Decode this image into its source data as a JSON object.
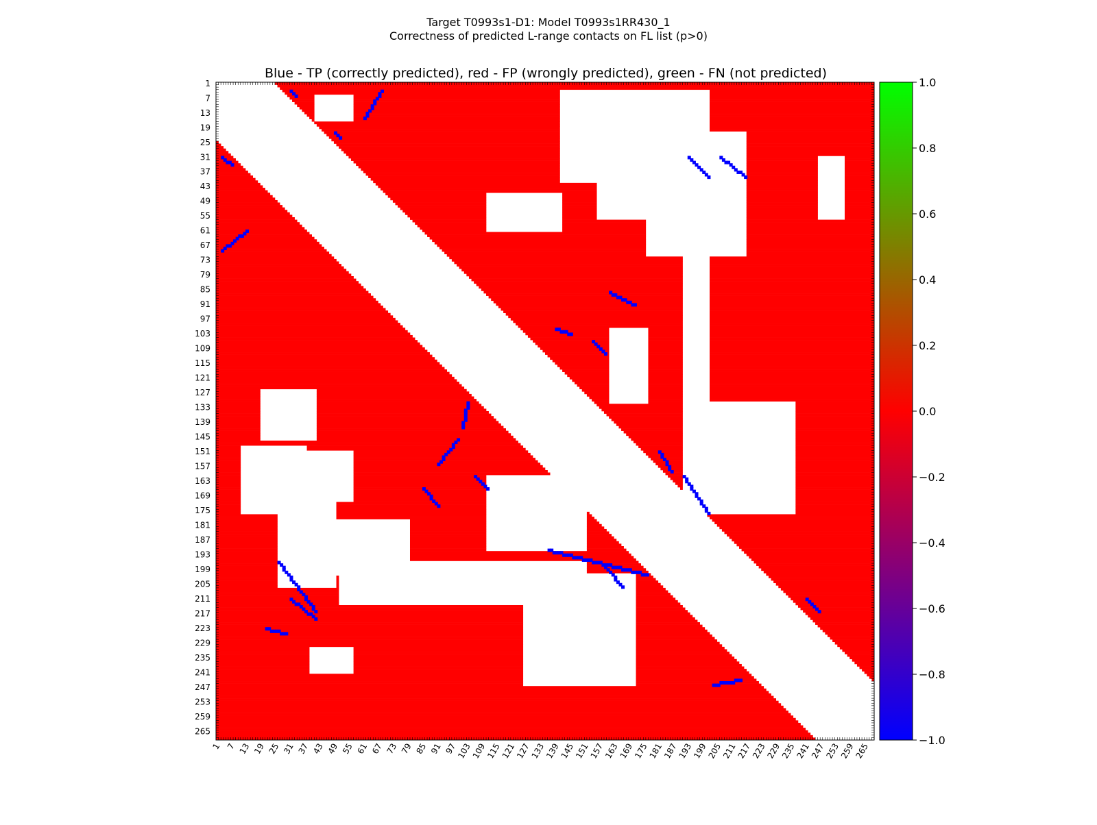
{
  "chart_data": {
    "type": "heatmap",
    "suptitle_line1": "Target T0993s1-D1: Model T0993s1RR430_1",
    "suptitle_line2": "Correctness of predicted L-range contacts on FL list (p>0)",
    "title": "Blue - TP (correctly predicted), red - FP (wrongly predicted), green - FN (not predicted)",
    "n_residues": 268,
    "xlabel": "",
    "ylabel": "",
    "tick_labels": [
      "1",
      "7",
      "13",
      "19",
      "25",
      "31",
      "37",
      "43",
      "49",
      "55",
      "61",
      "67",
      "73",
      "79",
      "85",
      "91",
      "97",
      "103",
      "109",
      "115",
      "121",
      "127",
      "133",
      "139",
      "145",
      "151",
      "157",
      "163",
      "169",
      "175",
      "181",
      "187",
      "193",
      "199",
      "205",
      "211",
      "217",
      "223",
      "229",
      "235",
      "241",
      "247",
      "253",
      "259",
      "265"
    ],
    "colorbar": {
      "range": [
        -1.0,
        1.0
      ],
      "tick_labels": [
        "1.0",
        "0.8",
        "0.6",
        "0.4",
        "0.2",
        "0.0",
        "−0.2",
        "−0.4",
        "−0.6",
        "−0.8",
        "−1.0"
      ],
      "colors": [
        "#0000ff",
        "#ff0000",
        "#00ff00"
      ]
    },
    "colors": {
      "fp": "#ff0000",
      "tp": "#0000ff",
      "fn": "#00ff00",
      "empty": "#ffffff"
    },
    "lower_triangle": {
      "sequence_separation_min": 24,
      "fill": "fp",
      "white_regions": [
        {
          "rows": [
            148,
            175
          ],
          "cols": [
            10,
            36
          ]
        },
        {
          "rows": [
            160,
            205
          ],
          "cols": [
            25,
            48
          ]
        },
        {
          "rows": [
            178,
            200
          ],
          "cols": [
            40,
            78
          ]
        },
        {
          "rows": [
            195,
            212
          ],
          "cols": [
            50,
            150
          ]
        },
        {
          "rows": [
            200,
            245
          ],
          "cols": [
            125,
            170
          ]
        },
        {
          "rows": [
            160,
            190
          ],
          "cols": [
            110,
            150
          ]
        },
        {
          "rows": [
            125,
            145
          ],
          "cols": [
            18,
            40
          ]
        },
        {
          "rows": [
            150,
            170
          ],
          "cols": [
            35,
            55
          ]
        },
        {
          "rows": [
            230,
            240
          ],
          "cols": [
            38,
            55
          ]
        }
      ],
      "tp_segments": [
        {
          "from": [
            30,
            2
          ],
          "to": [
            33,
            6
          ]
        },
        {
          "from": [
            68,
            2
          ],
          "to": [
            60,
            12
          ]
        },
        {
          "from": [
            195,
            25
          ],
          "to": [
            215,
            40
          ]
        },
        {
          "from": [
            210,
            30
          ],
          "to": [
            218,
            40
          ]
        },
        {
          "from": [
            165,
            84
          ],
          "to": [
            172,
            90
          ]
        },
        {
          "from": [
            155,
            90
          ],
          "to": [
            145,
            98
          ]
        },
        {
          "from": [
            140,
            100
          ],
          "to": [
            130,
            102
          ]
        },
        {
          "from": [
            160,
            105
          ],
          "to": [
            165,
            110
          ]
        },
        {
          "from": [
            190,
            135
          ],
          "to": [
            200,
            175
          ]
        },
        {
          "from": [
            197,
            158
          ],
          "to": [
            205,
            165
          ]
        },
        {
          "from": [
            222,
            20
          ],
          "to": [
            224,
            28
          ]
        },
        {
          "from": [
            245,
            202
          ],
          "to": [
            243,
            213
          ]
        }
      ]
    },
    "upper_triangle": {
      "sequence_separation_min": 24,
      "fill": "fp",
      "white_regions": [
        {
          "rows": [
            3,
            40
          ],
          "cols": [
            140,
            200
          ]
        },
        {
          "rows": [
            20,
            70
          ],
          "cols": [
            175,
            215
          ]
        },
        {
          "rows": [
            35,
            55
          ],
          "cols": [
            155,
            175
          ]
        },
        {
          "rows": [
            60,
            140
          ],
          "cols": [
            190,
            200
          ]
        },
        {
          "rows": [
            130,
            175
          ],
          "cols": [
            190,
            235
          ]
        },
        {
          "rows": [
            100,
            130
          ],
          "cols": [
            160,
            175
          ]
        },
        {
          "rows": [
            5,
            15
          ],
          "cols": [
            40,
            55
          ]
        },
        {
          "rows": [
            30,
            55
          ],
          "cols": [
            245,
            255
          ]
        },
        {
          "rows": [
            45,
            60
          ],
          "cols": [
            110,
            140
          ]
        }
      ],
      "tp_segments": [
        {
          "from": [
            3,
            30
          ],
          "to": [
            5,
            32
          ]
        },
        {
          "from": [
            3,
            67
          ],
          "to": [
            14,
            60
          ]
        },
        {
          "from": [
            20,
            48
          ],
          "to": [
            22,
            50
          ]
        },
        {
          "from": [
            30,
            192
          ],
          "to": [
            38,
            200
          ]
        },
        {
          "from": [
            30,
            205
          ],
          "to": [
            38,
            215
          ]
        },
        {
          "from": [
            85,
            160
          ],
          "to": [
            90,
            170
          ]
        },
        {
          "from": [
            100,
            138
          ],
          "to": [
            102,
            144
          ]
        },
        {
          "from": [
            105,
            153
          ],
          "to": [
            110,
            158
          ]
        },
        {
          "from": [
            150,
            180
          ],
          "to": [
            158,
            185
          ]
        },
        {
          "from": [
            160,
            190
          ],
          "to": [
            175,
            200
          ]
        },
        {
          "from": [
            210,
            240
          ],
          "to": [
            215,
            245
          ]
        }
      ]
    }
  }
}
